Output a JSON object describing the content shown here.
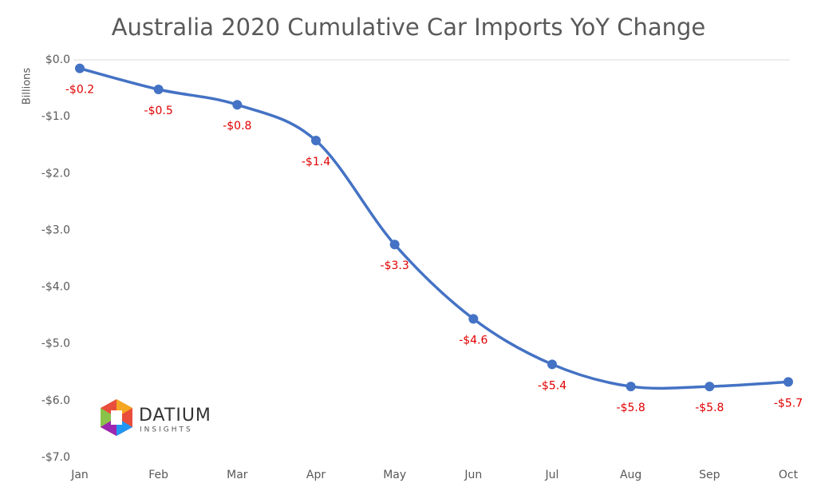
{
  "chart_data": {
    "type": "line",
    "title": "Australia 2020 Cumulative Car Imports YoY Change",
    "y_axis_label": "Billions",
    "categories": [
      "Jan",
      "Feb",
      "Mar",
      "Apr",
      "May",
      "Jun",
      "Jul",
      "Aug",
      "Sep",
      "Oct"
    ],
    "series": [
      {
        "name": "Cumulative YoY Change",
        "color": "#4472c4",
        "values": [
          -0.15,
          -0.52,
          -0.79,
          -1.42,
          -3.25,
          -4.56,
          -5.36,
          -5.75,
          -5.75,
          -5.67
        ],
        "value_labels": [
          "-$0.2",
          "-$0.5",
          "-$0.8",
          "-$1.4",
          "-$3.3",
          "-$4.6",
          "-$5.4",
          "-$5.8",
          "-$5.8",
          "-$5.7"
        ]
      }
    ],
    "label_color": "#e00000",
    "ylim": [
      -7,
      0
    ],
    "yticks": [
      {
        "value": 0,
        "label": "$0.0"
      },
      {
        "value": -1,
        "label": "-$1.0"
      },
      {
        "value": -2,
        "label": "-$2.0"
      },
      {
        "value": -3,
        "label": "-$3.0"
      },
      {
        "value": -4,
        "label": "-$4.0"
      },
      {
        "value": -5,
        "label": "-$5.0"
      },
      {
        "value": -6,
        "label": "-$6.0"
      },
      {
        "value": -7,
        "label": "-$7.0"
      }
    ],
    "grid": false,
    "smooth": true,
    "logo": {
      "name": "DATIUM",
      "tagline": "INSIGHTS"
    }
  }
}
